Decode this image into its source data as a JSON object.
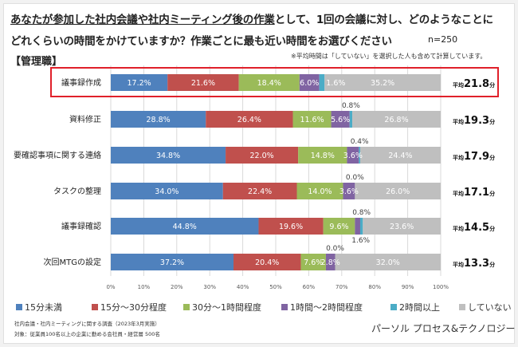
{
  "header": {
    "title_line1_underlined": "あなたが参加した社内会議や社内ミーティング後の作業",
    "title_line1_rest": "として、1回の会議に対し、どのようなことに",
    "title_line2": "どれくらいの時間をかけていますか？作業ごとに最も近い時間をお選びください",
    "sample_size": "n=250",
    "section": "【管理職】",
    "note": "※平均時間は「していない」を選択した人も含めて計算しています。"
  },
  "chart_data": {
    "type": "bar",
    "orientation": "horizontal",
    "stacked": true,
    "percent_stacked": true,
    "title": "あなたが参加した社内会議や社内ミーティング後の作業として、1回の会議に対し、どのようなことにどれくらいの時間をかけていますか？作業ごとに最も近い時間をお選びください",
    "xlabel": "",
    "ylabel": "",
    "xlim": [
      0,
      100
    ],
    "x_ticks": [
      "0%",
      "10%",
      "20%",
      "30%",
      "40%",
      "50%",
      "60%",
      "70%",
      "80%",
      "90%",
      "100%"
    ],
    "grid": true,
    "legend_position": "bottom",
    "categories": [
      "議事録作成",
      "資料修正",
      "要確認事項に関する連絡",
      "タスクの整理",
      "議事録確認",
      "次回MTGの設定"
    ],
    "series": [
      {
        "name": "15分未満",
        "color": "#4f81bd",
        "values": [
          17.2,
          28.8,
          34.8,
          34.0,
          44.8,
          37.2
        ]
      },
      {
        "name": "15分～30分程度",
        "color": "#c0504d",
        "values": [
          21.6,
          26.4,
          22.0,
          22.4,
          19.6,
          20.4
        ]
      },
      {
        "name": "30分～1時間程度",
        "color": "#9bbb59",
        "values": [
          18.4,
          11.6,
          14.8,
          14.0,
          9.6,
          7.6
        ]
      },
      {
        "name": "1時間～2時間程度",
        "color": "#8064a2",
        "values": [
          6.0,
          5.6,
          3.6,
          3.6,
          1.6,
          2.8
        ]
      },
      {
        "name": "2時間以上",
        "color": "#4bacc6",
        "values": [
          1.6,
          0.8,
          0.4,
          0.0,
          0.8,
          0.0
        ]
      },
      {
        "name": "していない",
        "color": "#bfbfbf",
        "values": [
          35.2,
          26.8,
          24.4,
          26.0,
          23.6,
          32.0
        ]
      }
    ],
    "averages": [
      "21.8",
      "19.3",
      "17.9",
      "17.1",
      "14.5",
      "13.3"
    ],
    "average_prefix": "平均",
    "average_suffix": "分",
    "highlighted_category": "議事録作成"
  },
  "footer": {
    "source": "社内会議・社内ミーティングに関する調査（2023年3月実施）",
    "target": "対象：従業員100名以上の企業に勤める会社員・経営層 500名",
    "brand": "パーソル プロセス&テクノロジー"
  }
}
